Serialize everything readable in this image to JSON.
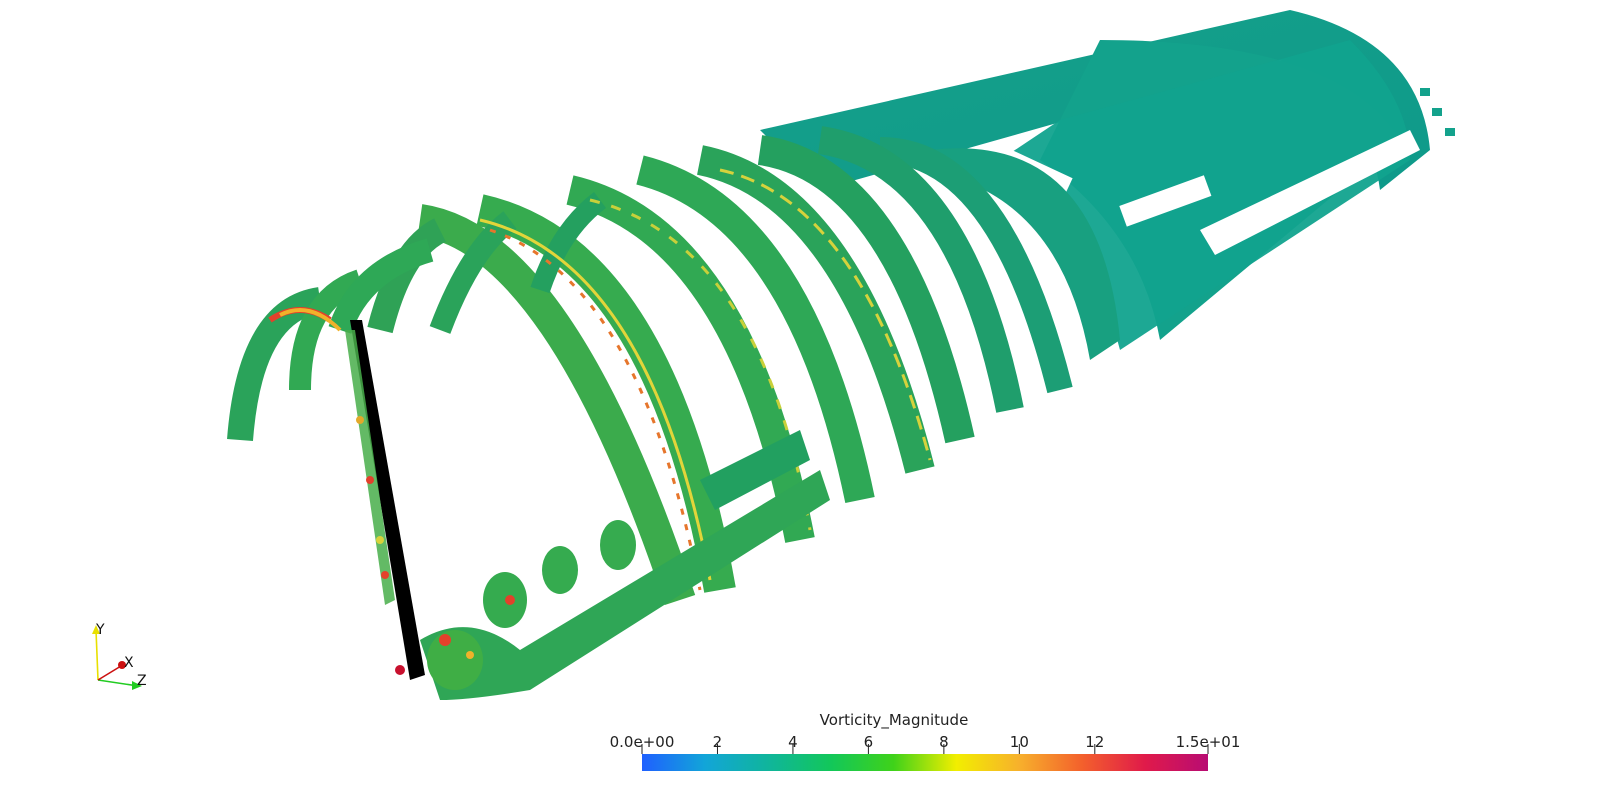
{
  "colorbar": {
    "title": "Vorticity_Magnitude",
    "range": [
      0,
      15
    ],
    "ticks": [
      {
        "value": 0,
        "label": "0.0e+00"
      },
      {
        "value": 2,
        "label": "2"
      },
      {
        "value": 4,
        "label": "4"
      },
      {
        "value": 6,
        "label": "6"
      },
      {
        "value": 8,
        "label": "8"
      },
      {
        "value": 10,
        "label": "10"
      },
      {
        "value": 12,
        "label": "12"
      },
      {
        "value": 15,
        "label": "1.5e+01"
      }
    ],
    "colormap": [
      "#1f60ff",
      "#12a5d8",
      "#10b59c",
      "#12c75a",
      "#3fd21a",
      "#f2ee00",
      "#f7b02c",
      "#f3602c",
      "#e01a4a",
      "#b80c73"
    ]
  },
  "orientation_axes": {
    "y_label": "Y",
    "x_label": "X",
    "z_label": "Z",
    "y_color": "#e8e000",
    "x_color": "#cc1010",
    "z_color": "#22cc22"
  },
  "scene": {
    "rod_color": "#000000",
    "surface_colors": [
      "#1f9e6e",
      "#239a5e",
      "#2aa552",
      "#5cbd3c",
      "#c7d43a",
      "#e46a2a"
    ],
    "sheet_color": "#12a08a"
  }
}
